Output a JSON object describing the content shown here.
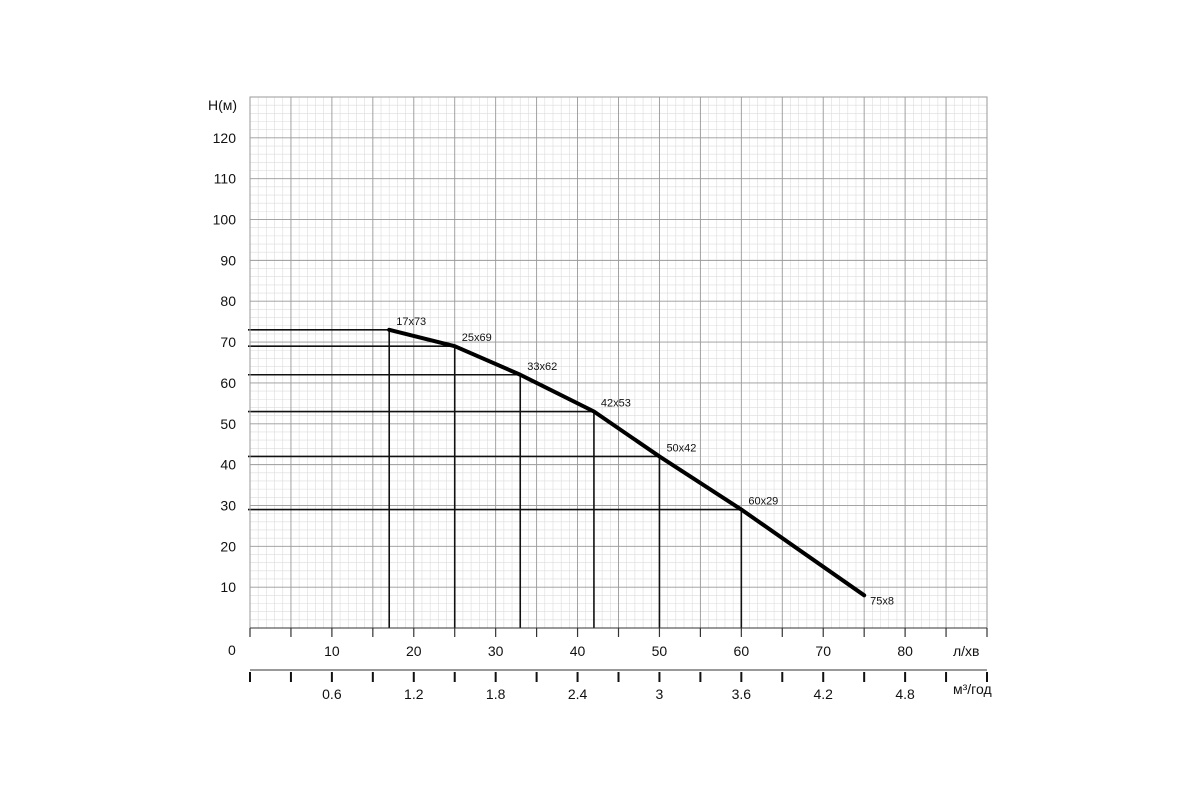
{
  "chart_data": {
    "type": "line",
    "title": "",
    "ylabel": "H(м)",
    "xlabel": "л/хв",
    "x2label": "м³/год",
    "origin_label": "0",
    "xlim": [
      0,
      90
    ],
    "ylim": [
      0,
      130
    ],
    "x_ticks": [
      "10",
      "20",
      "30",
      "40",
      "50",
      "60",
      "70",
      "80"
    ],
    "x2_ticks": [
      "0.6",
      "1.2",
      "1.8",
      "2.4",
      "3",
      "3.6",
      "4.2",
      "4.8"
    ],
    "y_ticks": [
      "10",
      "20",
      "30",
      "40",
      "50",
      "60",
      "70",
      "80",
      "90",
      "100",
      "110",
      "120"
    ],
    "grid": true,
    "series": [
      {
        "x": [
          17,
          25,
          33,
          42,
          50,
          60,
          75
        ],
        "y": [
          73,
          69,
          62,
          53,
          42,
          29,
          8
        ],
        "labels": [
          "17x73",
          "25x69",
          "33x62",
          "42x53",
          "50x42",
          "60x29",
          "75x8"
        ]
      }
    ]
  }
}
